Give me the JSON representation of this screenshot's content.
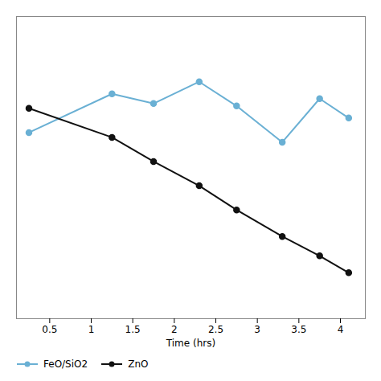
{
  "chart_data": {
    "type": "line",
    "x": [
      0.25,
      1.25,
      1.75,
      2.3,
      2.75,
      3.3,
      3.75,
      4.1
    ],
    "series": [
      {
        "name": "FeO/SiO2",
        "color": "#6ab0d4",
        "values": [
          0.72,
          0.88,
          0.84,
          0.93,
          0.83,
          0.68,
          0.86,
          0.78
        ]
      },
      {
        "name": "ZnO",
        "color": "#111111",
        "values": [
          0.82,
          0.7,
          0.6,
          0.5,
          0.4,
          0.29,
          0.21,
          0.14
        ]
      }
    ],
    "xlabel": "Time (hrs)",
    "xlim": [
      0.1,
      4.3
    ],
    "xticks": [
      0.5,
      1,
      1.5,
      2,
      2.5,
      3,
      3.5,
      4
    ],
    "ylim": [
      -0.05,
      1.2
    ],
    "yticks": [],
    "tick_labels": "x",
    "marker": "circle",
    "legend": "lower left"
  }
}
